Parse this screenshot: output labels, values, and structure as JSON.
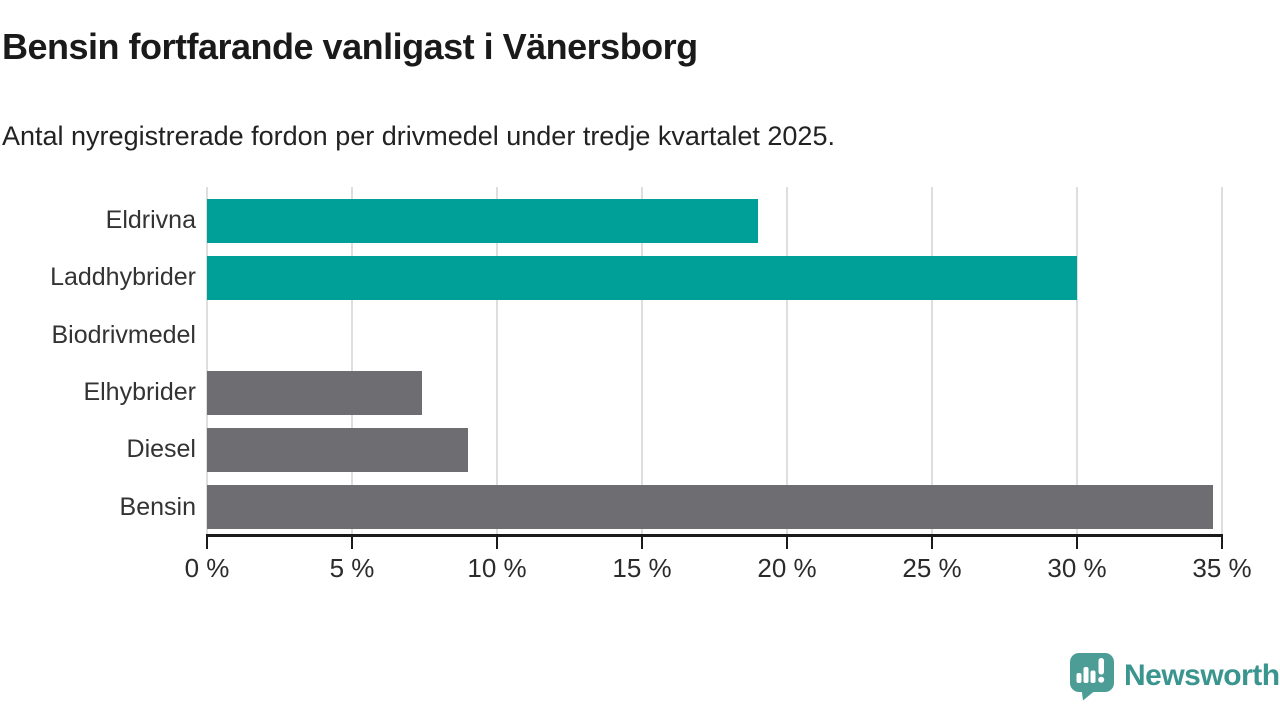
{
  "header": {
    "title": "Bensin fortfarande vanligast i Vänersborg",
    "subtitle": "Antal nyregistrerade fordon per drivmedel under tredje kvartalet 2025."
  },
  "chart_data": {
    "type": "bar",
    "orientation": "horizontal",
    "title": "Bensin fortfarande vanligast i Vänersborg",
    "subtitle": "Antal nyregistrerade fordon per drivmedel under tredje kvartalet 2025.",
    "categories": [
      "Eldrivna",
      "Laddhybrider",
      "Biodrivmedel",
      "Elhybrider",
      "Diesel",
      "Bensin"
    ],
    "values": [
      19,
      30,
      0,
      7.4,
      9,
      34.7
    ],
    "unit": "%",
    "xlim": [
      0,
      35
    ],
    "x_ticks": [
      0,
      5,
      10,
      15,
      20,
      25,
      30,
      35
    ],
    "x_tick_labels": [
      "0 %",
      "5 %",
      "10 %",
      "15 %",
      "20 %",
      "25 %",
      "30 %",
      "35 %"
    ],
    "grid": true,
    "legend": "none",
    "bar_colors": [
      "#00a099",
      "#00a099",
      "#6e6e72",
      "#6e6e72",
      "#6e6e72",
      "#6e6e72"
    ],
    "palette": {
      "teal": "#00a099",
      "gray": "#6e6e72",
      "gridline": "#dedede",
      "axis": "#1a1a1a"
    }
  },
  "footer": {
    "brand": "Newsworthy",
    "brand_color": "#3a958e",
    "logo_icon": "newsworthy-speech-bubble-bar-chart-icon",
    "icon_color": "#4d9d97"
  }
}
